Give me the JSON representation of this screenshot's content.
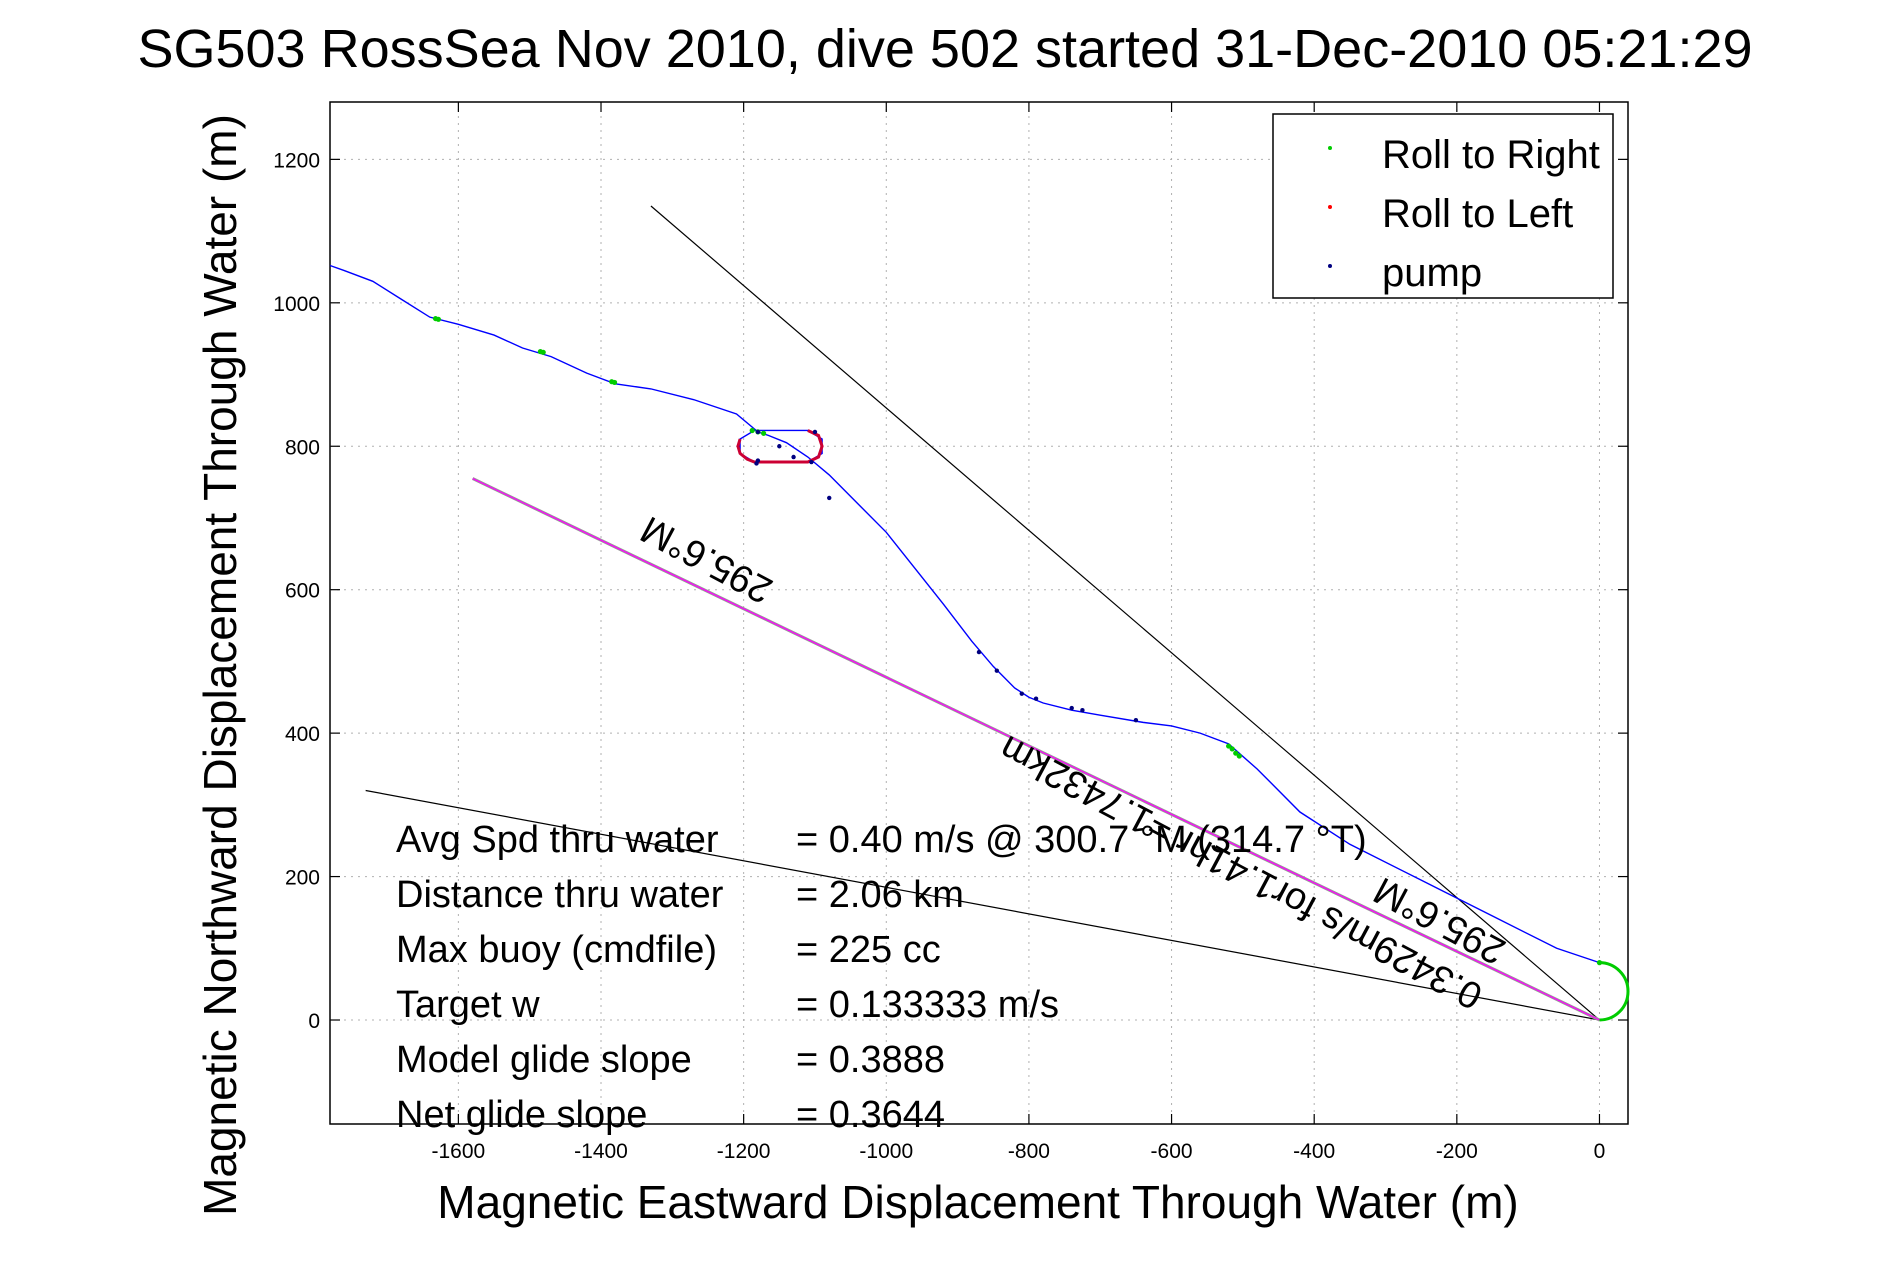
{
  "chart_data": {
    "type": "line",
    "title": "SG503 RossSea Nov 2010, dive 502 started 31-Dec-2010 05:21:29",
    "xlabel": "Magnetic Eastward Displacement Through Water (m)",
    "ylabel": "Magnetic Northward Displacement Through Water (m)",
    "xlim": [
      -1780,
      40
    ],
    "ylim": [
      -145,
      1280
    ],
    "xticks": [
      -1600,
      -1400,
      -1200,
      -1000,
      -800,
      -600,
      -400,
      -200,
      0
    ],
    "yticks": [
      0,
      200,
      400,
      600,
      800,
      1000,
      1200
    ],
    "grid": true,
    "legend_position": "top-right",
    "legend": [
      {
        "label": "Roll to Right",
        "color": "#00cc00"
      },
      {
        "label": "Roll to Left",
        "color": "#ff0000"
      },
      {
        "label": "pump",
        "color": "#000080"
      }
    ],
    "track": {
      "name": "glider track",
      "color": "#0000ff",
      "points": [
        [
          0,
          80
        ],
        [
          -60,
          100
        ],
        [
          -150,
          145
        ],
        [
          -250,
          195
        ],
        [
          -350,
          245
        ],
        [
          -420,
          290
        ],
        [
          -480,
          350
        ],
        [
          -520,
          385
        ],
        [
          -560,
          400
        ],
        [
          -600,
          410
        ],
        [
          -640,
          415
        ],
        [
          -700,
          425
        ],
        [
          -740,
          432
        ],
        [
          -780,
          442
        ],
        [
          -800,
          450
        ],
        [
          -820,
          463
        ],
        [
          -850,
          493
        ],
        [
          -880,
          528
        ],
        [
          -920,
          580
        ],
        [
          -960,
          630
        ],
        [
          -1000,
          680
        ],
        [
          -1040,
          720
        ],
        [
          -1080,
          760
        ],
        [
          -1110,
          785
        ],
        [
          -1140,
          805
        ],
        [
          -1165,
          815
        ],
        [
          -1180,
          820
        ],
        [
          -1210,
          845
        ],
        [
          -1270,
          865
        ],
        [
          -1330,
          880
        ],
        [
          -1380,
          887
        ],
        [
          -1420,
          902
        ],
        [
          -1470,
          925
        ],
        [
          -1510,
          937
        ],
        [
          -1550,
          955
        ],
        [
          -1600,
          970
        ],
        [
          -1640,
          980
        ],
        [
          -1680,
          1005
        ],
        [
          -1720,
          1030
        ],
        [
          -1760,
          1045
        ],
        [
          -1780,
          1052
        ]
      ]
    },
    "loop": {
      "points": [
        [
          -1185,
          822
        ],
        [
          -1110,
          822
        ],
        [
          -1090,
          810
        ],
        [
          -1090,
          790
        ],
        [
          -1110,
          778
        ],
        [
          -1185,
          778
        ],
        [
          -1205,
          790
        ],
        [
          -1205,
          810
        ],
        [
          -1185,
          822
        ]
      ],
      "color": "#0000ff"
    },
    "roll_left": {
      "color": "#cc0033",
      "points": [
        [
          -1205,
          810
        ],
        [
          -1208,
          800
        ],
        [
          -1205,
          790
        ],
        [
          -1195,
          782
        ],
        [
          -1185,
          778
        ],
        [
          -1110,
          778
        ],
        [
          -1095,
          785
        ],
        [
          -1090,
          800
        ],
        [
          -1095,
          815
        ],
        [
          -1110,
          822
        ]
      ]
    },
    "roll_right": {
      "color": "#00cc00",
      "points": [
        [
          -1632,
          978
        ],
        [
          -1628,
          977
        ],
        [
          -1485,
          932
        ],
        [
          -1481,
          931
        ],
        [
          -1385,
          890
        ],
        [
          -1381,
          889
        ],
        [
          -1188,
          822
        ],
        [
          -1180,
          820
        ],
        [
          -1172,
          818
        ],
        [
          -520,
          382
        ],
        [
          -515,
          378
        ],
        [
          -510,
          372
        ],
        [
          -505,
          368
        ],
        [
          0,
          80
        ]
      ]
    },
    "pump": {
      "color": "#000080",
      "points": [
        [
          -1180,
          820
        ],
        [
          -1182,
          776
        ],
        [
          -1150,
          800
        ],
        [
          -1130,
          785
        ],
        [
          -1100,
          820
        ],
        [
          -1105,
          778
        ],
        [
          -1080,
          728
        ],
        [
          -870,
          513
        ],
        [
          -845,
          487
        ],
        [
          -810,
          455
        ],
        [
          -790,
          448
        ],
        [
          -740,
          435
        ],
        [
          -725,
          432
        ],
        [
          -650,
          418
        ],
        [
          -1180,
          780
        ]
      ]
    },
    "magenta_line": {
      "color": "#ff00ff",
      "from": [
        -1580,
        755
      ],
      "to": [
        0,
        0
      ]
    },
    "gray_line": {
      "color": "#999999",
      "from": [
        -1580,
        755
      ],
      "to": [
        0,
        0
      ]
    },
    "black_line_1": {
      "color": "#000000",
      "from": [
        -1330,
        1135
      ],
      "to": [
        0,
        0
      ]
    },
    "black_line_2": {
      "color": "#000000",
      "from": [
        -1730,
        320
      ],
      "to": [
        0,
        0
      ]
    },
    "end_arc": {
      "color": "#00cc00",
      "center": [
        0,
        40
      ],
      "radius": 40
    },
    "annotations": {
      "rotated_1": "295.6°M",
      "rotated_2": "0.3429m/s for1.41hr =1.7432km",
      "rotated_3": "295.6°M",
      "stats": [
        {
          "label": "Avg Spd thru water",
          "value": "=  0.40 m/s @ 300.7 °M (314.7 °T)"
        },
        {
          "label": "Distance thru water",
          "value": "=  2.06 km"
        },
        {
          "label": "Max buoy (cmdfile)",
          "value": "= 225 cc"
        },
        {
          "label": "Target w",
          "value": "= 0.133333 m/s"
        },
        {
          "label": "Model glide slope",
          "value": "= 0.3888"
        },
        {
          "label": "Net glide slope",
          "value": "= 0.3644"
        }
      ]
    }
  }
}
